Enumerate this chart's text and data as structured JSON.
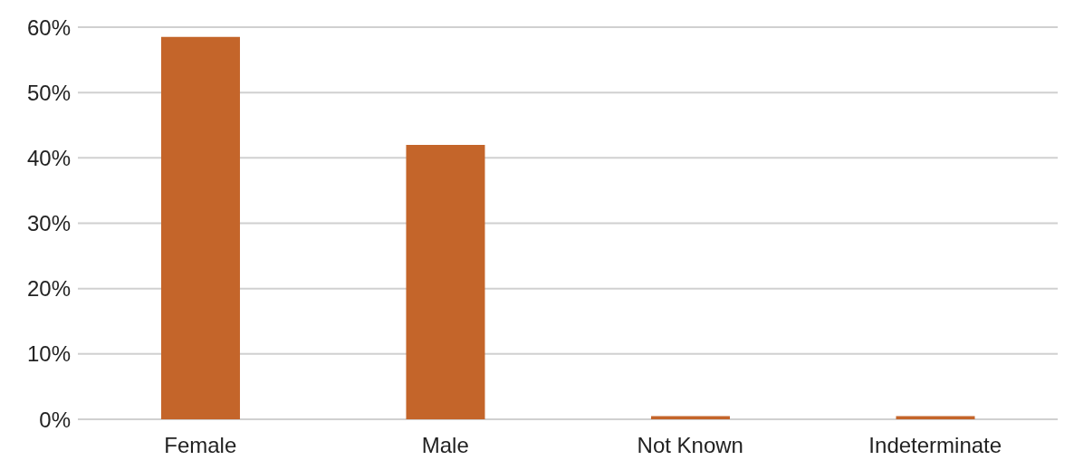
{
  "chart_data": {
    "type": "bar",
    "categories": [
      "Female",
      "Male",
      "Not Known",
      "Indeterminate"
    ],
    "values": [
      58.5,
      42,
      0.5,
      0.5
    ],
    "color": "#c4652a",
    "ylim": [
      0,
      60
    ],
    "yticks": [
      {
        "value": 0,
        "label": "0%"
      },
      {
        "value": 10,
        "label": "10%"
      },
      {
        "value": 20,
        "label": "20%"
      },
      {
        "value": 30,
        "label": "30%"
      },
      {
        "value": 40,
        "label": "40%"
      },
      {
        "value": 50,
        "label": "50%"
      },
      {
        "value": 60,
        "label": "60%"
      }
    ],
    "grid": "y"
  }
}
